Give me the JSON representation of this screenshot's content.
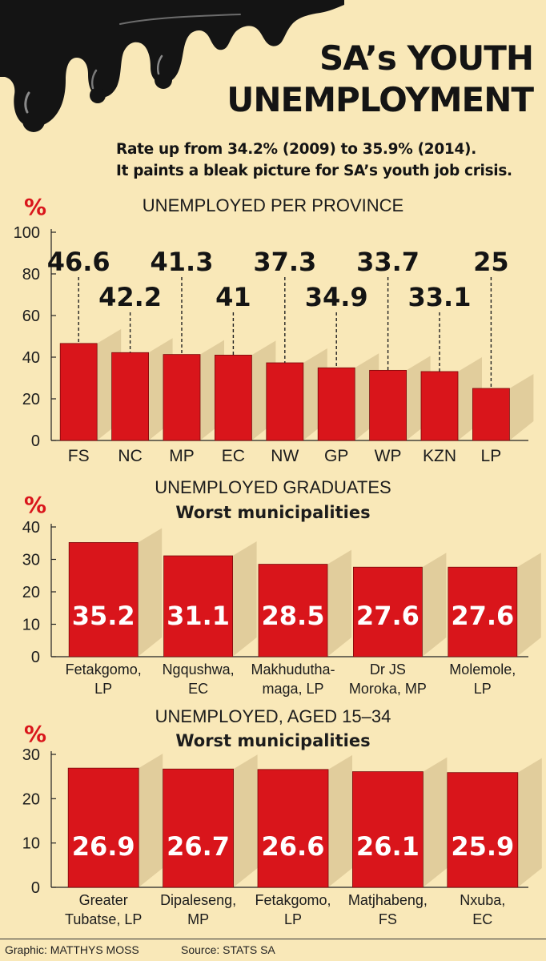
{
  "title_line1": "SA’s YOUTH",
  "title_line2": "UNEMPLOYMENT",
  "subtitle_line1": "Rate up from 34.2% (2009) to 35.9% (2014).",
  "subtitle_line2": "It paints a bleak picture for SA’s youth job crisis.",
  "footer": {
    "credit": "Graphic: MATTHYS MOSS",
    "source": "Source: STATS SA"
  },
  "colors": {
    "background": "#f9e8b8",
    "bar": "#d9151b",
    "unit": "#d9151b",
    "oil": "#141414"
  },
  "chart_data": [
    {
      "type": "bar",
      "title": "UNEMPLOYED PER PROVINCE",
      "subtitle": "",
      "ylabel": "%",
      "ylim": [
        0,
        100
      ],
      "yticks": [
        0,
        20,
        40,
        60,
        80,
        100
      ],
      "categories": [
        [
          "FS"
        ],
        [
          "NC"
        ],
        [
          "MP"
        ],
        [
          "EC"
        ],
        [
          "NW"
        ],
        [
          "GP"
        ],
        [
          "WP"
        ],
        [
          "KZN"
        ],
        [
          "LP"
        ]
      ],
      "values": [
        46.6,
        42.2,
        41.3,
        41,
        37.3,
        34.9,
        33.7,
        33.1,
        25
      ],
      "labels": [
        "46.6",
        "42.2",
        "41.3",
        "41",
        "37.3",
        "34.9",
        "33.7",
        "33.1",
        "25"
      ],
      "label_position": "above, with dashed leader lines"
    },
    {
      "type": "bar",
      "title": "UNEMPLOYED GRADUATES",
      "subtitle": "Worst municipalities",
      "ylabel": "%",
      "ylim": [
        0,
        40
      ],
      "yticks": [
        0,
        10,
        20,
        30,
        40
      ],
      "categories": [
        [
          "Fetakgomo,",
          "LP"
        ],
        [
          "Ngqushwa,",
          "EC"
        ],
        [
          "Makhudutha-",
          "maga, LP"
        ],
        [
          "Dr JS",
          "Moroka, MP"
        ],
        [
          "Molemole,",
          "LP"
        ]
      ],
      "values": [
        35.2,
        31.1,
        28.5,
        27.6,
        27.6
      ],
      "labels": [
        "35.2",
        "31.1",
        "28.5",
        "27.6",
        "27.6"
      ],
      "label_position": "inside bars"
    },
    {
      "type": "bar",
      "title": "UNEMPLOYED, AGED 15–34",
      "subtitle": "Worst municipalities",
      "ylabel": "%",
      "ylim": [
        0,
        30
      ],
      "yticks": [
        0,
        10,
        20,
        30
      ],
      "categories": [
        [
          "Greater",
          "Tubatse, LP"
        ],
        [
          "Dipaleseng,",
          "MP"
        ],
        [
          "Fetakgomo,",
          "LP"
        ],
        [
          "Matjhabeng,",
          "FS"
        ],
        [
          "Nxuba,",
          "EC"
        ]
      ],
      "values": [
        26.9,
        26.7,
        26.6,
        26.1,
        25.9
      ],
      "labels": [
        "26.9",
        "26.7",
        "26.6",
        "26.1",
        "25.9"
      ],
      "label_position": "inside bars"
    }
  ]
}
